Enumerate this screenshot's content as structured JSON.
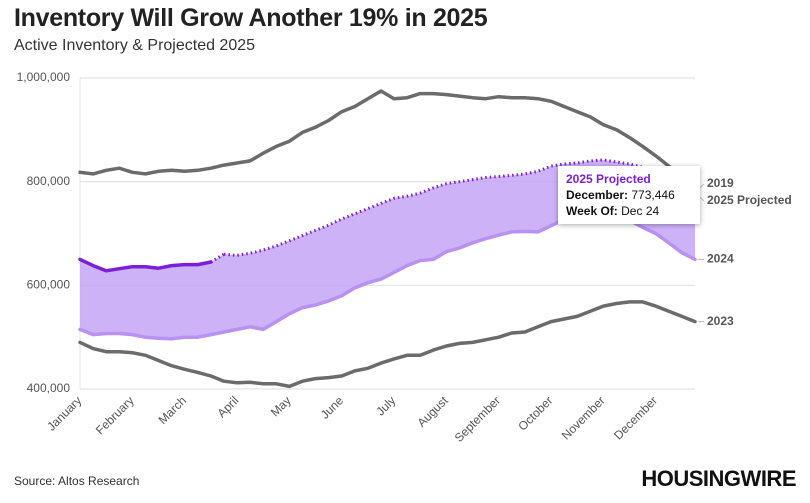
{
  "title": "Inventory Will Grow Another 19% in 2025",
  "subtitle": "Active Inventory & Projected 2025",
  "source": "Source: Altos Research",
  "brand": "HOUSINGWIRE",
  "chart_data": {
    "type": "line",
    "categories": [
      "January",
      null,
      null,
      null,
      "February",
      null,
      null,
      null,
      "March",
      null,
      null,
      null,
      "April",
      null,
      null,
      null,
      "May",
      null,
      null,
      null,
      "June",
      null,
      null,
      null,
      "July",
      null,
      null,
      null,
      "August",
      null,
      null,
      null,
      "September",
      null,
      null,
      null,
      "October",
      null,
      null,
      null,
      "November",
      null,
      null,
      null,
      "December",
      null,
      null,
      null
    ],
    "ylim": [
      400000,
      1000000
    ],
    "yticks": [
      {
        "value": 400000,
        "label": "400,000"
      },
      {
        "value": 600000,
        "label": "600,000"
      },
      {
        "value": 800000,
        "label": "800,000"
      },
      {
        "value": 1000000,
        "label": "1,000,000"
      }
    ],
    "grid": true,
    "band": {
      "upper": 2,
      "lower": 1,
      "color": "#c4a4f6"
    },
    "series": [
      {
        "name": "2019",
        "color": "#6b6b6b",
        "values": [
          818000,
          815000,
          822000,
          826000,
          818000,
          815000,
          820000,
          822000,
          820000,
          822000,
          826000,
          832000,
          836000,
          840000,
          855000,
          868000,
          878000,
          895000,
          905000,
          918000,
          935000,
          945000,
          960000,
          975000,
          960000,
          962000,
          970000,
          970000,
          968000,
          965000,
          962000,
          960000,
          964000,
          962000,
          962000,
          960000,
          955000,
          945000,
          935000,
          925000,
          910000,
          900000,
          885000,
          868000,
          850000,
          830000,
          808000,
          785000
        ]
      },
      {
        "name": "2024",
        "color": "#b891f2",
        "values": [
          515000,
          505000,
          507000,
          507000,
          505000,
          500000,
          498000,
          497000,
          500000,
          500000,
          505000,
          510000,
          515000,
          520000,
          515000,
          530000,
          545000,
          557000,
          562000,
          570000,
          580000,
          595000,
          605000,
          612000,
          625000,
          638000,
          648000,
          650000,
          665000,
          672000,
          682000,
          690000,
          697000,
          703000,
          704000,
          703000,
          715000,
          727000,
          733000,
          736000,
          737000,
          733000,
          725000,
          712000,
          700000,
          682000,
          663000,
          650000
        ]
      },
      {
        "name": "2025 Projected",
        "color": "#7b1fd8",
        "dotted_from": 11,
        "values": [
          650000,
          638000,
          628000,
          632000,
          636000,
          636000,
          633000,
          638000,
          640000,
          640000,
          645000,
          660000,
          658000,
          662000,
          668000,
          676000,
          686000,
          696000,
          706000,
          716000,
          728000,
          738000,
          748000,
          758000,
          768000,
          772000,
          778000,
          788000,
          796000,
          800000,
          804000,
          808000,
          810000,
          812000,
          815000,
          820000,
          830000,
          834000,
          836000,
          840000,
          842000,
          838000,
          834000,
          828000,
          818000,
          808000,
          792000,
          773446
        ]
      },
      {
        "name": "2023",
        "color": "#6b6b6b",
        "values": [
          490000,
          478000,
          472000,
          472000,
          470000,
          465000,
          455000,
          445000,
          438000,
          432000,
          425000,
          415000,
          412000,
          413000,
          410000,
          410000,
          405000,
          415000,
          420000,
          422000,
          425000,
          435000,
          440000,
          450000,
          458000,
          465000,
          465000,
          475000,
          483000,
          488000,
          490000,
          495000,
          500000,
          508000,
          510000,
          520000,
          530000,
          535000,
          540000,
          550000,
          560000,
          565000,
          568000,
          568000,
          560000,
          550000,
          540000,
          530000
        ]
      }
    ],
    "tooltip": {
      "series": "2025 Projected",
      "label": "December:",
      "value": 773446,
      "value_label": "773,446",
      "week_label": "Week Of:",
      "week": "Dec 24"
    }
  }
}
